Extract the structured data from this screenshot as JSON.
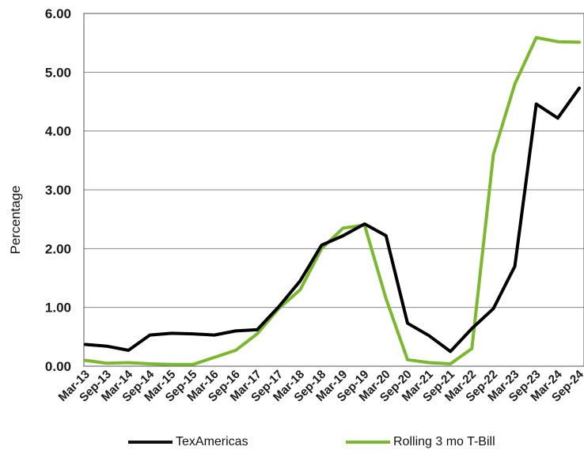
{
  "chart_data": {
    "type": "line",
    "title": "",
    "xlabel": "",
    "ylabel": "Percentage",
    "ylim": [
      0,
      6
    ],
    "yticks": [
      "0.00",
      "1.00",
      "2.00",
      "3.00",
      "4.00",
      "5.00",
      "6.00"
    ],
    "grid": "horizontal",
    "legend_position": "bottom",
    "x": [
      "Mar-13",
      "Sep-13",
      "Mar-14",
      "Sep-14",
      "Mar-15",
      "Sep-15",
      "Mar-16",
      "Sep-16",
      "Mar-17",
      "Sep-17",
      "Mar-18",
      "Sep-18",
      "Mar-19",
      "Sep-19",
      "Mar-20",
      "Sep-20",
      "Mar-21",
      "Sep-21",
      "Mar-22",
      "Sep-22",
      "Mar-23",
      "Sep-23",
      "Mar-24",
      "Sep-24"
    ],
    "series": [
      {
        "name": "TexAmericas",
        "color": "#000000",
        "values": [
          0.37,
          0.34,
          0.27,
          0.53,
          0.56,
          0.55,
          0.53,
          0.6,
          0.62,
          1.01,
          1.45,
          2.06,
          2.22,
          2.42,
          2.22,
          0.73,
          0.52,
          0.25,
          0.64,
          0.98,
          1.7,
          4.46,
          4.22,
          4.73
        ]
      },
      {
        "name": "Rolling 3 mo T-Bill",
        "color": "#7cb82f",
        "values": [
          0.1,
          0.05,
          0.06,
          0.04,
          0.03,
          0.03,
          0.15,
          0.27,
          0.55,
          0.98,
          1.3,
          2.0,
          2.35,
          2.4,
          1.15,
          0.11,
          0.06,
          0.04,
          0.3,
          3.6,
          4.8,
          5.59,
          5.52,
          5.51
        ]
      }
    ]
  }
}
